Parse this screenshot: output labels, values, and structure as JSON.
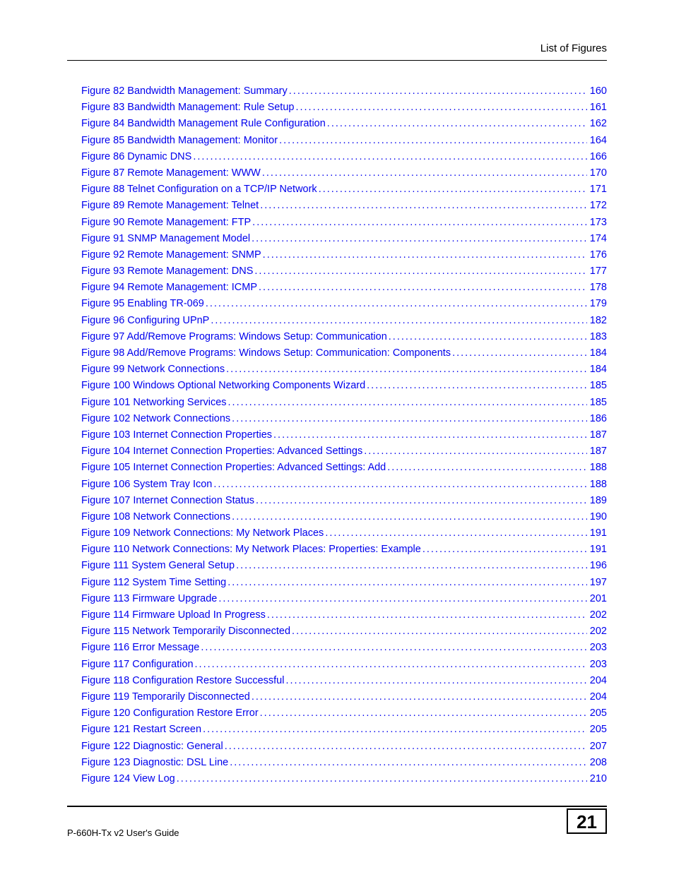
{
  "header": {
    "title": "List of Figures"
  },
  "entries": [
    {
      "title": "Figure 82 Bandwidth Management: Summary",
      "page": "160"
    },
    {
      "title": "Figure 83 Bandwidth Management: Rule Setup",
      "page": "161"
    },
    {
      "title": "Figure 84 Bandwidth Management Rule Configuration",
      "page": "162"
    },
    {
      "title": "Figure 85 Bandwidth Management: Monitor",
      "page": "164"
    },
    {
      "title": "Figure 86 Dynamic DNS",
      "page": "166"
    },
    {
      "title": "Figure 87 Remote Management: WWW",
      "page": "170"
    },
    {
      "title": "Figure 88 Telnet Configuration on a TCP/IP Network",
      "page": "171"
    },
    {
      "title": "Figure 89 Remote Management: Telnet",
      "page": "172"
    },
    {
      "title": "Figure 90 Remote Management: FTP",
      "page": "173"
    },
    {
      "title": "Figure 91 SNMP Management Model",
      "page": "174"
    },
    {
      "title": "Figure 92 Remote Management: SNMP",
      "page": "176"
    },
    {
      "title": "Figure 93 Remote Management: DNS",
      "page": "177"
    },
    {
      "title": "Figure 94 Remote Management: ICMP",
      "page": "178"
    },
    {
      "title": "Figure 95 Enabling TR-069",
      "page": "179"
    },
    {
      "title": "Figure 96 Configuring UPnP",
      "page": "182"
    },
    {
      "title": "Figure 97 Add/Remove Programs: Windows Setup: Communication",
      "page": "183"
    },
    {
      "title": "Figure 98 Add/Remove Programs: Windows Setup: Communication: Components",
      "page": "184"
    },
    {
      "title": "Figure 99 Network Connections",
      "page": "184"
    },
    {
      "title": "Figure 100 Windows Optional Networking Components Wizard",
      "page": "185"
    },
    {
      "title": "Figure 101 Networking Services",
      "page": "185"
    },
    {
      "title": "Figure 102 Network Connections",
      "page": "186"
    },
    {
      "title": "Figure 103 Internet Connection Properties",
      "page": "187"
    },
    {
      "title": "Figure 104 Internet Connection Properties: Advanced Settings",
      "page": "187"
    },
    {
      "title": "Figure 105 Internet Connection Properties: Advanced Settings: Add",
      "page": "188"
    },
    {
      "title": "Figure 106 System Tray Icon",
      "page": "188"
    },
    {
      "title": "Figure 107 Internet Connection Status",
      "page": "189"
    },
    {
      "title": "Figure 108 Network Connections",
      "page": "190"
    },
    {
      "title": "Figure 109 Network Connections: My Network Places",
      "page": "191"
    },
    {
      "title": "Figure 110 Network Connections: My Network Places: Properties: Example",
      "page": "191"
    },
    {
      "title": "Figure 111 System General Setup",
      "page": "196"
    },
    {
      "title": "Figure 112 System Time Setting",
      "page": "197"
    },
    {
      "title": "Figure 113 Firmware Upgrade",
      "page": "201"
    },
    {
      "title": "Figure 114 Firmware Upload In Progress",
      "page": "202"
    },
    {
      "title": "Figure 115 Network Temporarily Disconnected",
      "page": "202"
    },
    {
      "title": "Figure 116 Error Message",
      "page": "203"
    },
    {
      "title": "Figure 117 Configuration",
      "page": "203"
    },
    {
      "title": "Figure 118 Configuration Restore Successful",
      "page": "204"
    },
    {
      "title": "Figure 119 Temporarily Disconnected",
      "page": "204"
    },
    {
      "title": "Figure 120 Configuration Restore Error",
      "page": "205"
    },
    {
      "title": "Figure 121 Restart Screen",
      "page": "205"
    },
    {
      "title": "Figure 122 Diagnostic: General",
      "page": "207"
    },
    {
      "title": "Figure 123 Diagnostic: DSL Line",
      "page": "208"
    },
    {
      "title": "Figure 124 View Log",
      "page": "210"
    }
  ],
  "footer": {
    "guide": "P-660H-Tx v2 User's Guide",
    "page_number": "21"
  },
  "styling": {
    "link_color": "#0000ee",
    "text_color": "#000000",
    "background_color": "#ffffff",
    "body_fontsize": 14.5,
    "header_fontsize": 15,
    "footer_fontsize": 13,
    "page_number_fontsize": 26,
    "line_height": 1.6,
    "font_family": "Arial"
  }
}
